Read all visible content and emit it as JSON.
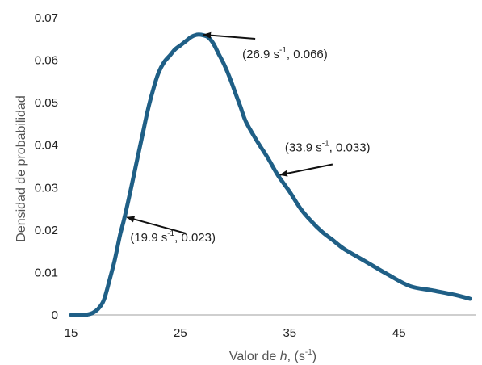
{
  "chart_data": {
    "type": "line",
    "title": "",
    "xlabel": {
      "prefix": "Valor de ",
      "var": "h",
      "suffix": ", (s",
      "sup": "-1",
      "close": ")"
    },
    "ylabel": "Densidad de probabilidad",
    "xlim": [
      15,
      52
    ],
    "ylim": [
      0,
      0.07
    ],
    "xticks": [
      15,
      25,
      35,
      45
    ],
    "yticks": [
      0,
      0.01,
      0.02,
      0.03,
      0.04,
      0.05,
      0.06,
      0.07
    ],
    "xtick_labels": [
      "15",
      "25",
      "35",
      "45"
    ],
    "ytick_labels": [
      "0",
      "0.01",
      "0.02",
      "0.03",
      "0.04",
      "0.05",
      "0.06",
      "0.07"
    ],
    "grid": false,
    "legend": "none",
    "colors": {
      "line": "#1f5f86",
      "axis": "#bfbfbf",
      "arrow": "#111111"
    },
    "series": [
      {
        "x": [
          15,
          16,
          16.5,
          17,
          17.5,
          18,
          18.5,
          19,
          19.5,
          19.9,
          20.5,
          21,
          21.5,
          22,
          22.5,
          23,
          23.5,
          24,
          24.5,
          25,
          25.5,
          26,
          26.5,
          26.9,
          27.5,
          28,
          28.5,
          29,
          29.5,
          30,
          30.5,
          31,
          32,
          33,
          33.9,
          35,
          36,
          37,
          38,
          39,
          40,
          42,
          44,
          46,
          48,
          50,
          51.5
        ],
        "y": [
          0,
          0,
          0.0001,
          0.0005,
          0.0015,
          0.0035,
          0.008,
          0.013,
          0.019,
          0.023,
          0.03,
          0.036,
          0.042,
          0.048,
          0.053,
          0.057,
          0.0595,
          0.061,
          0.0625,
          0.0635,
          0.0645,
          0.0655,
          0.066,
          0.066,
          0.0655,
          0.064,
          0.0615,
          0.059,
          0.056,
          0.0525,
          0.049,
          0.0455,
          0.041,
          0.037,
          0.033,
          0.029,
          0.025,
          0.022,
          0.0195,
          0.0175,
          0.0155,
          0.0125,
          0.0095,
          0.0068,
          0.0058,
          0.0048,
          0.0038
        ]
      }
    ],
    "annotations": [
      {
        "label_open": "(26.9 s",
        "sup": "-1",
        "label_close": ", 0.066)",
        "x": 26.9,
        "y": 0.066
      },
      {
        "label_open": "(33.9 s",
        "sup": "-1",
        "label_close": ", 0.033)",
        "x": 33.9,
        "y": 0.033
      },
      {
        "label_open": "(19.9 s",
        "sup": "-1",
        "label_close": ", 0.023)",
        "x": 19.9,
        "y": 0.023
      }
    ]
  }
}
